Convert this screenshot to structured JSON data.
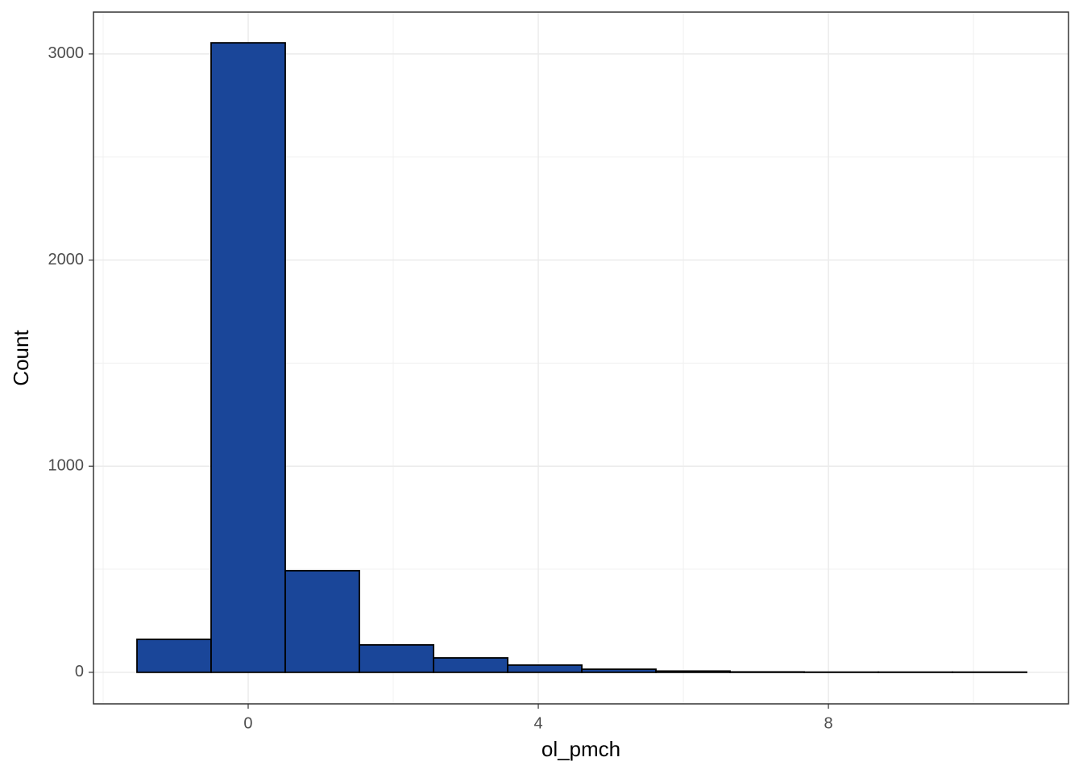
{
  "chart_data": {
    "type": "histogram",
    "x_label": "ol_pmch",
    "y_label": "Count",
    "bins": [
      -1.533,
      -0.511,
      0.511,
      1.533,
      2.556,
      3.578,
      4.6,
      5.622,
      6.644,
      7.667,
      8.689,
      9.711,
      10.733
    ],
    "counts": [
      160,
      3054,
      493,
      133,
      70,
      35,
      15,
      6,
      2,
      1,
      1,
      1
    ],
    "color": "#1a4699",
    "edgecolor": "#000000",
    "xlim": [
      -2.133,
      11.31
    ],
    "ylim": [
      -153,
      3203
    ],
    "xticks": [
      0,
      4,
      8
    ],
    "yticks": [
      0,
      1000,
      2000,
      3000
    ],
    "x_minor_grid": [
      -2,
      2,
      6,
      10
    ],
    "y_minor_grid": [
      500,
      1500,
      2500
    ],
    "grid": true
  }
}
